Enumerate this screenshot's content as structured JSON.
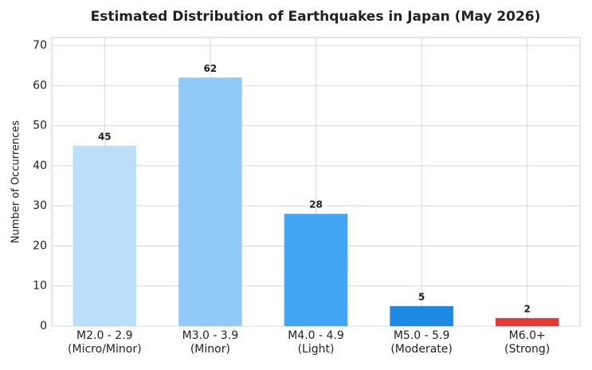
{
  "chart_data": {
    "type": "bar",
    "title": "Estimated Distribution of Earthquakes in Japan (May 2026)",
    "y_label": "Number of Occurrences",
    "categories": [
      "M2.0 - 2.9\n(Micro/Minor)",
      "M3.0 - 3.9\n(Minor)",
      "M4.0 - 4.9\n(Light)",
      "M5.0 - 5.9\n(Moderate)",
      "M6.0+\n(Strong)"
    ],
    "values": [
      45,
      62,
      28,
      5,
      2
    ],
    "colors": [
      "#bbdefb",
      "#90caf9",
      "#42a5f5",
      "#1e88e5",
      "#e53935"
    ],
    "ylim": [
      0,
      72
    ],
    "yticks": [
      0,
      10,
      20,
      30,
      40,
      50,
      60,
      70
    ],
    "grid": true
  }
}
